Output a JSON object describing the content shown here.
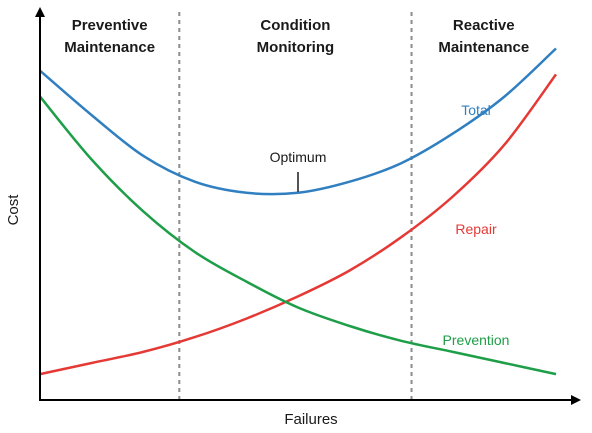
{
  "chart_data": {
    "type": "line",
    "xlabel": "Failures",
    "ylabel": "Cost",
    "xlim": [
      0,
      100
    ],
    "ylim": [
      0,
      100
    ],
    "grid": false,
    "region_titles": [
      {
        "line1": "Preventive",
        "line2": "Maintenance"
      },
      {
        "line1": "Condition",
        "line2": "Monitoring"
      },
      {
        "line1": "Reactive",
        "line2": "Maintenance"
      }
    ],
    "region_boundaries": [
      27,
      72
    ],
    "series": [
      {
        "name": "Total",
        "color": "#2f7fc1",
        "x": [
          0,
          10,
          20,
          30,
          40,
          50,
          60,
          70,
          80,
          90,
          100
        ],
        "y": [
          89,
          77,
          66,
          59,
          56,
          56,
          59,
          64,
          72,
          82,
          95
        ]
      },
      {
        "name": "Repair",
        "color": "#e53935",
        "x": [
          0,
          10,
          20,
          30,
          40,
          50,
          60,
          70,
          80,
          90,
          100
        ],
        "y": [
          7,
          10,
          13,
          17,
          22,
          28,
          35,
          44,
          55,
          69,
          88
        ]
      },
      {
        "name": "Prevention",
        "color": "#1e9e48",
        "x": [
          0,
          10,
          20,
          30,
          40,
          50,
          60,
          70,
          80,
          90,
          100
        ],
        "y": [
          82,
          65,
          51,
          40,
          32,
          25,
          20,
          16,
          13,
          10,
          7
        ]
      }
    ],
    "annotations": [
      {
        "text": "Optimum",
        "x": 50,
        "y": 56
      }
    ]
  }
}
